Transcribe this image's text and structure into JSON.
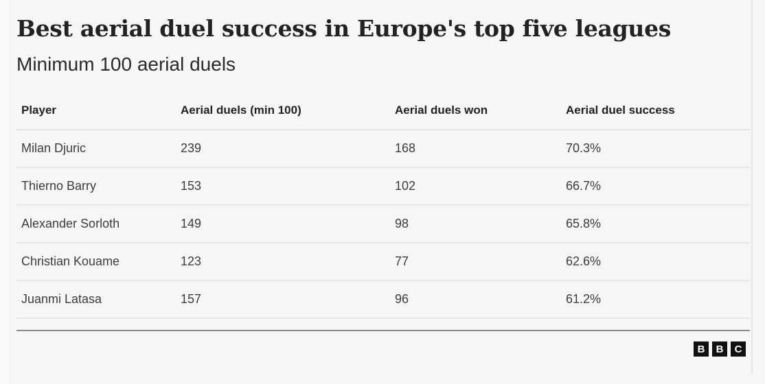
{
  "title": "Best aerial duel success in Europe's top five leagues",
  "subtitle": "Minimum 100 aerial duels",
  "table": {
    "headers": [
      "Player",
      "Aerial duels (min 100)",
      "Aerial duels won",
      "Aerial duel success"
    ],
    "rows": [
      [
        "Milan Djuric",
        "239",
        "168",
        "70.3%"
      ],
      [
        "Thierno Barry",
        "153",
        "102",
        "66.7%"
      ],
      [
        "Alexander Sorloth",
        "149",
        "98",
        "65.8%"
      ],
      [
        "Christian Kouame",
        "123",
        "77",
        "62.6%"
      ],
      [
        "Juanmi Latasa",
        "157",
        "96",
        "61.2%"
      ]
    ]
  },
  "logo": [
    "B",
    "B",
    "C"
  ]
}
